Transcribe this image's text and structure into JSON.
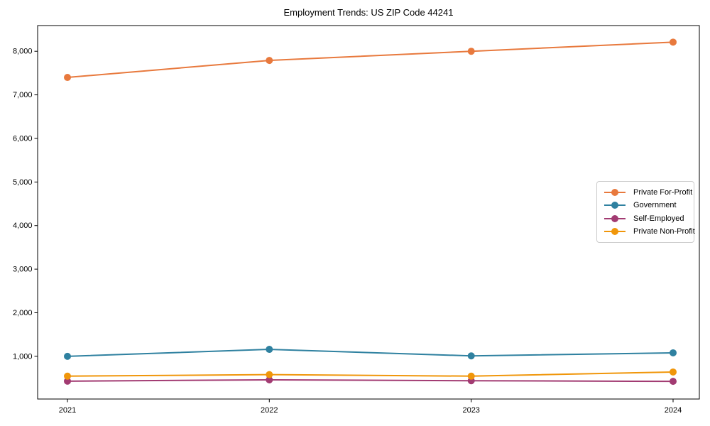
{
  "chart": {
    "title": "Employment Trends: US ZIP Code 44241"
  },
  "chart_data": {
    "type": "line",
    "title": "Employment Trends: US ZIP Code 44241",
    "xlabel": "",
    "ylabel": "",
    "x": [
      2021,
      2022,
      2023,
      2024
    ],
    "xtick_labels": [
      "2021",
      "2022",
      "2023",
      "2024"
    ],
    "yticks": [
      1000,
      2000,
      3000,
      4000,
      5000,
      6000,
      7000,
      8000
    ],
    "ytick_labels": [
      "1,000",
      "2,000",
      "3,000",
      "4,000",
      "5,000",
      "6,000",
      "7,000",
      "8,000"
    ],
    "ylim": [
      20,
      8590
    ],
    "grid": false,
    "legend_position": "center-right",
    "series": [
      {
        "name": "Private For-Profit",
        "color": "#E8793D",
        "values": [
          7400,
          7790,
          8000,
          8210
        ]
      },
      {
        "name": "Government",
        "color": "#2F81A0",
        "values": [
          1000,
          1160,
          1010,
          1080
        ]
      },
      {
        "name": "Self-Employed",
        "color": "#A23B72",
        "values": [
          430,
          460,
          440,
          425
        ]
      },
      {
        "name": "Private Non-Profit",
        "color": "#F0960A",
        "values": [
          545,
          580,
          545,
          640
        ]
      }
    ]
  }
}
